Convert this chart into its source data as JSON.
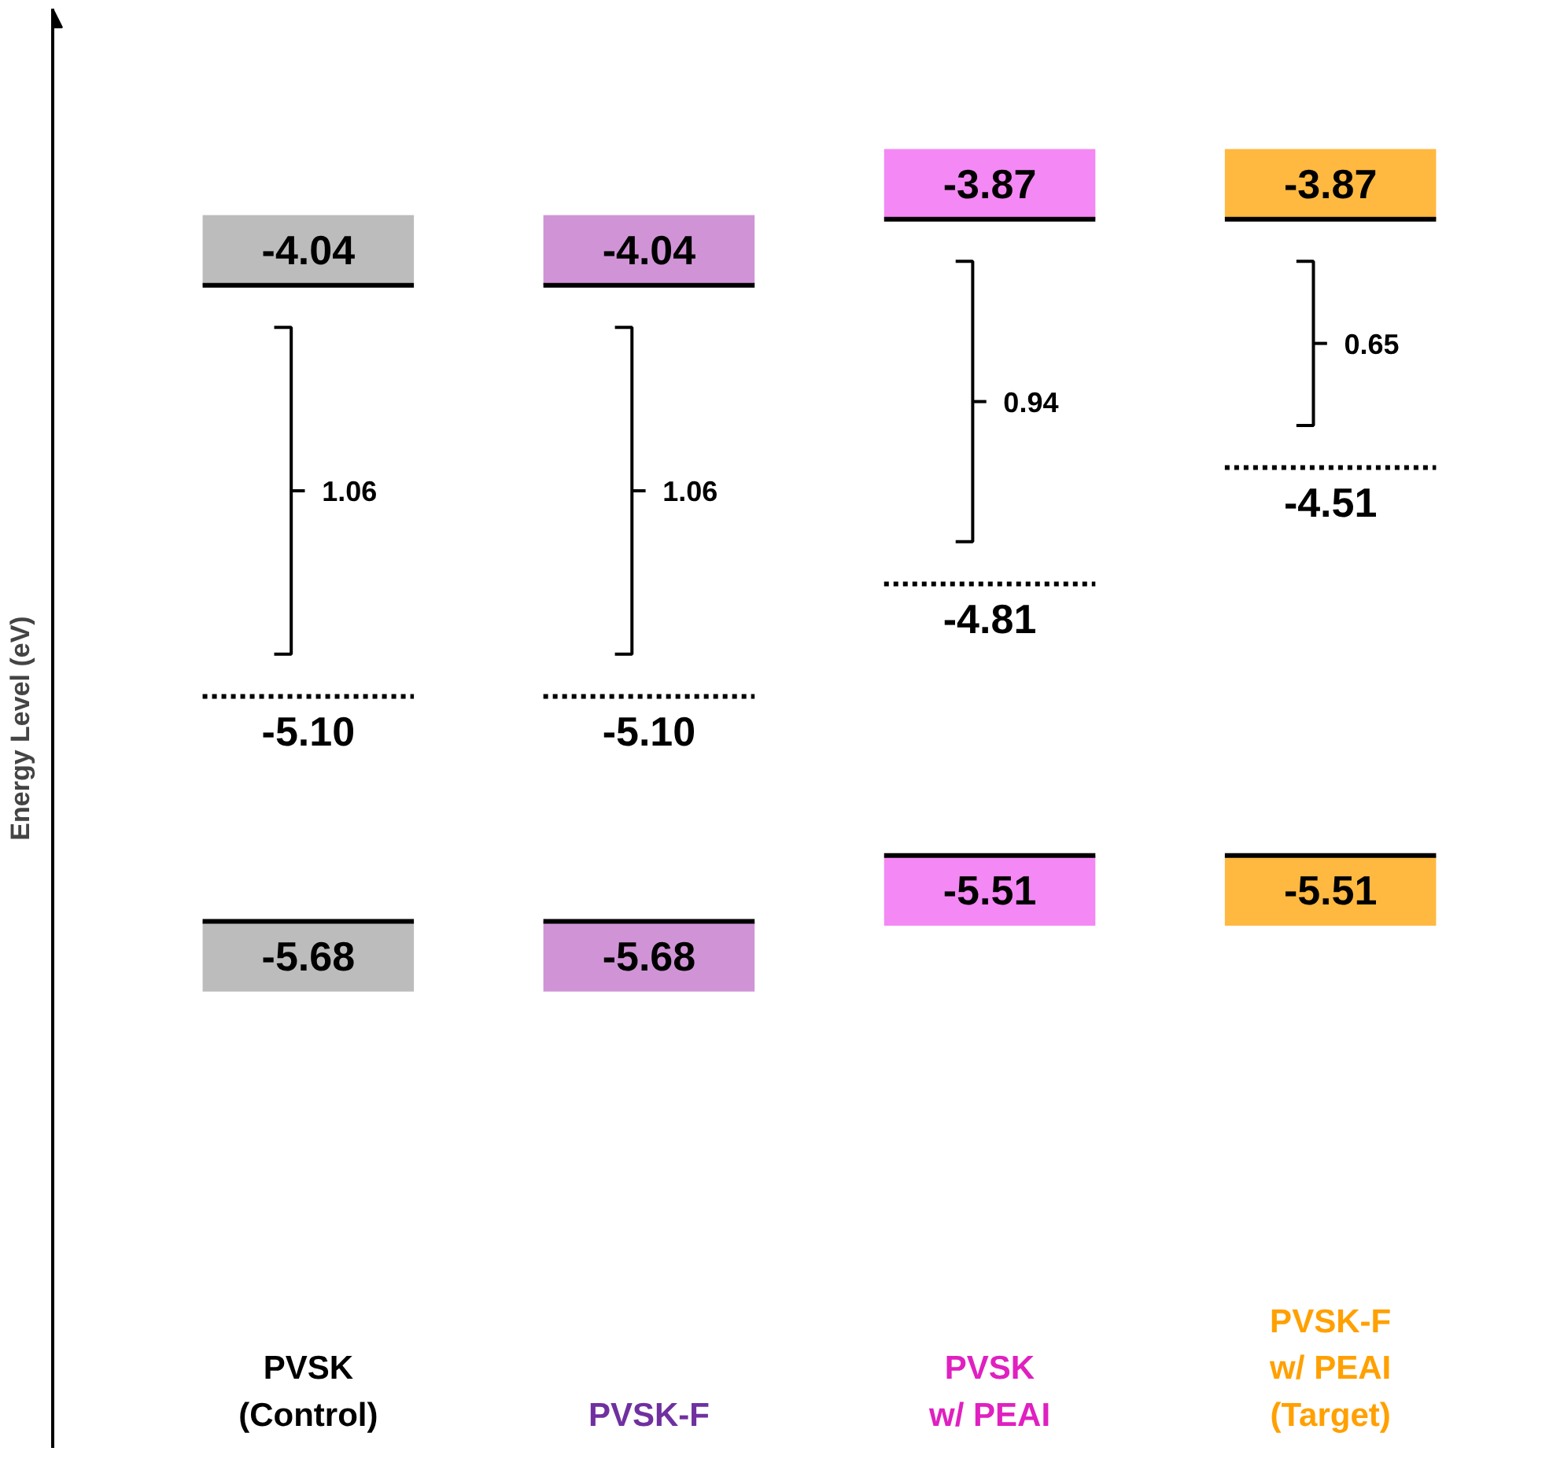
{
  "chart_data": {
    "type": "other",
    "ylabel": "Energy Level (eV)",
    "categories": [
      "PVSK\n(Control)",
      "PVSK-F",
      "PVSK\nw/ PEAI",
      "PVSK-F\nw/ PEAI\n(Target)"
    ],
    "colors": [
      "#000000",
      "#7030a0",
      "#e020c0",
      "#ffa000"
    ],
    "series": [
      {
        "colors": [
          "#a6a6a6",
          "#c070c8",
          "#f060f0",
          "#ffa000"
        ],
        "values": [
          -4.04,
          -4.04,
          -3.87,
          -3.87
        ],
        "value_labels": [
          "-4.04",
          "-4.04",
          "-3.87",
          "-3.87"
        ]
      },
      {
        "color": "#000000",
        "values": [
          -5.1,
          -5.1,
          -4.81,
          -4.51
        ],
        "value_labels": [
          "-5.10",
          "-5.10",
          "-4.81",
          "-4.51"
        ],
        "line_style": "dotted"
      },
      {
        "colors": [
          "#a6a6a6",
          "#c070c8",
          "#f060f0",
          "#ffa000"
        ],
        "values": [
          -5.68,
          -5.68,
          -5.51,
          -5.51
        ],
        "value_labels": [
          "-5.68",
          "-5.68",
          "-5.51",
          "-5.51"
        ]
      }
    ],
    "annotations": [
      "1.06",
      "1.06",
      "0.94",
      "0.65"
    ]
  }
}
